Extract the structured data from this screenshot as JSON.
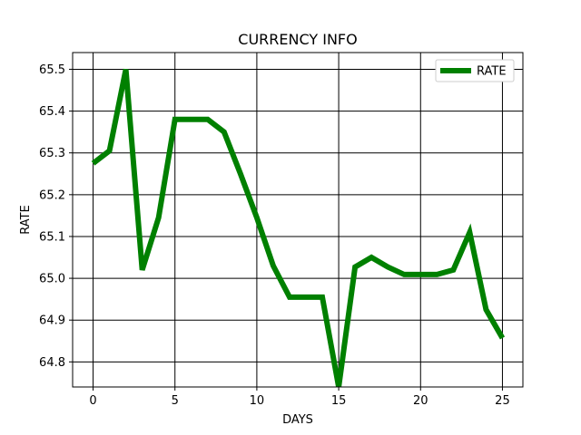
{
  "chart_data": {
    "type": "line",
    "title": "CURRENCY INFO",
    "xlabel": "DAYS",
    "ylabel": "RATE",
    "xlim": [
      -1.25,
      26.25
    ],
    "ylim": [
      64.74,
      65.54
    ],
    "xticks": [
      0,
      5,
      10,
      15,
      20,
      25
    ],
    "yticks": [
      64.8,
      64.9,
      65.0,
      65.1,
      65.2,
      65.3,
      65.4,
      65.5
    ],
    "ytick_labels": [
      "64.8",
      "64.9",
      "65.0",
      "65.1",
      "65.2",
      "65.3",
      "65.4",
      "65.5"
    ],
    "grid": true,
    "legend_position": "top-right",
    "series": [
      {
        "name": "RATE",
        "color": "#008000",
        "x": [
          0,
          1,
          2,
          3,
          4,
          5,
          6,
          7,
          8,
          9,
          10,
          11,
          12,
          13,
          14,
          15,
          16,
          17,
          18,
          19,
          20,
          21,
          22,
          23,
          24,
          25
        ],
        "y": [
          65.275,
          65.305,
          65.5,
          65.02,
          65.145,
          65.38,
          65.38,
          65.38,
          65.35,
          65.25,
          65.145,
          65.03,
          64.955,
          64.955,
          64.955,
          64.74,
          65.027,
          65.05,
          65.027,
          65.009,
          65.009,
          65.009,
          65.02,
          65.11,
          64.925,
          64.857
        ]
      }
    ]
  }
}
